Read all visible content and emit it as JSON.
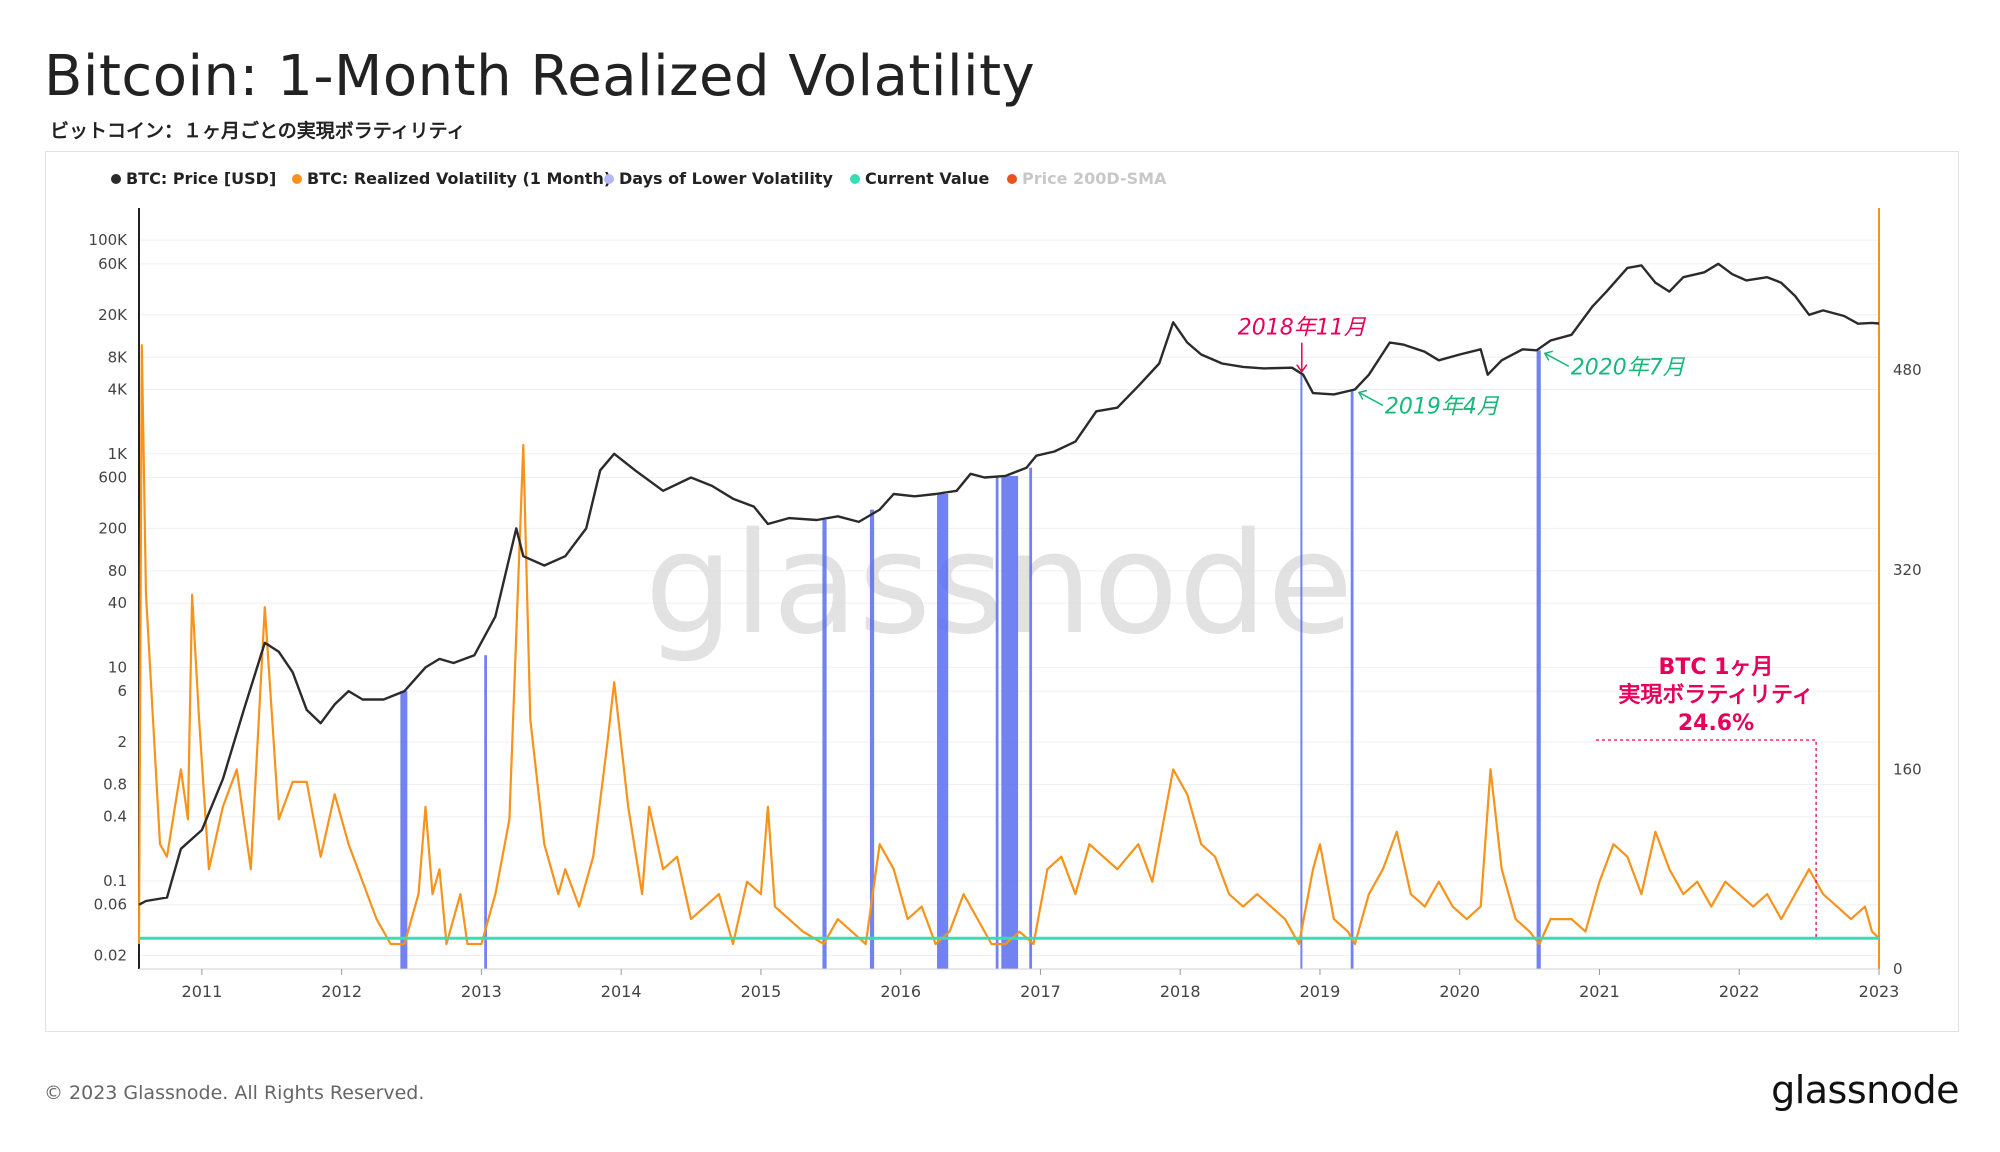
{
  "title": "Bitcoin: 1-Month Realized Volatility",
  "subtitle": "ビットコイン：１ヶ月ごとの実現ボラティリティ",
  "footer": "© 2023 Glassnode. All Rights Reserved.",
  "brand": "glassnode",
  "watermark": "glassnode",
  "colors": {
    "price": "#2b2b2b",
    "volatility": "#f7931a",
    "lower_vol_days": "#5b6cf0",
    "current_value": "#34e0b2",
    "sma": "#e8541c",
    "annotation_red": "#e6005c",
    "annotation_green": "#18b87a"
  },
  "legend": [
    {
      "label": "BTC: Price [USD]",
      "color": "#2b2b2b",
      "active": true
    },
    {
      "label": "BTC: Realized Volatility (1 Month)",
      "color": "#f7931a",
      "active": true
    },
    {
      "label": "Days of Lower Volatility",
      "color": "#b3b8f5",
      "active": true
    },
    {
      "label": "Current Value",
      "color": "#34e0b2",
      "active": true
    },
    {
      "label": "Price 200D-SMA",
      "color": "#e8541c",
      "active": false
    }
  ],
  "chart_data": {
    "type": "line",
    "x_range": [
      2010.55,
      2023.0
    ],
    "x_ticks": [
      "2011",
      "2012",
      "2013",
      "2014",
      "2015",
      "2016",
      "2017",
      "2018",
      "2019",
      "2020",
      "2021",
      "2022",
      "2023"
    ],
    "left_axis": {
      "label": "",
      "scale": "log",
      "range": [
        0.015,
        200000
      ],
      "ticks": [
        {
          "v": 100000,
          "t": "100K"
        },
        {
          "v": 60000,
          "t": "60K"
        },
        {
          "v": 20000,
          "t": "20K"
        },
        {
          "v": 8000,
          "t": "8K"
        },
        {
          "v": 4000,
          "t": "4K"
        },
        {
          "v": 1000,
          "t": "1K"
        },
        {
          "v": 600,
          "t": "600"
        },
        {
          "v": 200,
          "t": "200"
        },
        {
          "v": 80,
          "t": "80"
        },
        {
          "v": 40,
          "t": "40"
        },
        {
          "v": 10,
          "t": "10"
        },
        {
          "v": 6,
          "t": "6"
        },
        {
          "v": 2,
          "t": "2"
        },
        {
          "v": 0.8,
          "t": "0.8"
        },
        {
          "v": 0.4,
          "t": "0.4"
        },
        {
          "v": 0.1,
          "t": "0.1"
        },
        {
          "v": 0.06,
          "t": "0.06"
        },
        {
          "v": 0.02,
          "t": "0.02"
        }
      ]
    },
    "right_axis": {
      "label": "",
      "scale": "linear",
      "range": [
        0,
        610
      ],
      "ticks": [
        0,
        160,
        320,
        480
      ]
    },
    "series": [
      {
        "name": "BTC: Price [USD]",
        "axis": "left",
        "points": [
          [
            2010.55,
            0.06
          ],
          [
            2010.6,
            0.065
          ],
          [
            2010.75,
            0.07
          ],
          [
            2010.85,
            0.2
          ],
          [
            2011.0,
            0.3
          ],
          [
            2011.15,
            0.9
          ],
          [
            2011.3,
            4
          ],
          [
            2011.45,
            17
          ],
          [
            2011.55,
            14
          ],
          [
            2011.65,
            9
          ],
          [
            2011.75,
            4
          ],
          [
            2011.85,
            3
          ],
          [
            2011.95,
            4.5
          ],
          [
            2012.05,
            6
          ],
          [
            2012.15,
            5
          ],
          [
            2012.3,
            5
          ],
          [
            2012.45,
            6
          ],
          [
            2012.6,
            10
          ],
          [
            2012.7,
            12
          ],
          [
            2012.8,
            11
          ],
          [
            2012.95,
            13
          ],
          [
            2013.1,
            30
          ],
          [
            2013.25,
            200
          ],
          [
            2013.3,
            110
          ],
          [
            2013.45,
            90
          ],
          [
            2013.6,
            110
          ],
          [
            2013.75,
            200
          ],
          [
            2013.85,
            700
          ],
          [
            2013.95,
            1000
          ],
          [
            2014.1,
            700
          ],
          [
            2014.3,
            450
          ],
          [
            2014.5,
            600
          ],
          [
            2014.65,
            500
          ],
          [
            2014.8,
            380
          ],
          [
            2014.95,
            320
          ],
          [
            2015.05,
            220
          ],
          [
            2015.2,
            250
          ],
          [
            2015.4,
            240
          ],
          [
            2015.55,
            260
          ],
          [
            2015.7,
            230
          ],
          [
            2015.85,
            300
          ],
          [
            2015.95,
            420
          ],
          [
            2016.1,
            400
          ],
          [
            2016.25,
            420
          ],
          [
            2016.4,
            450
          ],
          [
            2016.5,
            650
          ],
          [
            2016.6,
            600
          ],
          [
            2016.75,
            620
          ],
          [
            2016.9,
            740
          ],
          [
            2016.97,
            960
          ],
          [
            2017.1,
            1050
          ],
          [
            2017.25,
            1300
          ],
          [
            2017.4,
            2500
          ],
          [
            2017.55,
            2700
          ],
          [
            2017.7,
            4300
          ],
          [
            2017.85,
            7000
          ],
          [
            2017.95,
            17000
          ],
          [
            2018.05,
            11000
          ],
          [
            2018.15,
            8500
          ],
          [
            2018.3,
            7000
          ],
          [
            2018.45,
            6500
          ],
          [
            2018.6,
            6300
          ],
          [
            2018.8,
            6400
          ],
          [
            2018.88,
            5500
          ],
          [
            2018.95,
            3700
          ],
          [
            2019.1,
            3600
          ],
          [
            2019.25,
            4000
          ],
          [
            2019.35,
            5500
          ],
          [
            2019.5,
            11000
          ],
          [
            2019.6,
            10500
          ],
          [
            2019.75,
            9000
          ],
          [
            2019.85,
            7500
          ],
          [
            2020.0,
            8500
          ],
          [
            2020.15,
            9500
          ],
          [
            2020.2,
            5500
          ],
          [
            2020.3,
            7500
          ],
          [
            2020.45,
            9500
          ],
          [
            2020.55,
            9300
          ],
          [
            2020.65,
            11500
          ],
          [
            2020.8,
            13000
          ],
          [
            2020.95,
            24000
          ],
          [
            2021.05,
            33000
          ],
          [
            2021.2,
            55000
          ],
          [
            2021.3,
            58000
          ],
          [
            2021.4,
            40000
          ],
          [
            2021.5,
            33000
          ],
          [
            2021.6,
            45000
          ],
          [
            2021.75,
            50000
          ],
          [
            2021.85,
            60000
          ],
          [
            2021.95,
            48000
          ],
          [
            2022.05,
            42000
          ],
          [
            2022.2,
            45000
          ],
          [
            2022.3,
            40000
          ],
          [
            2022.4,
            30000
          ],
          [
            2022.5,
            20000
          ],
          [
            2022.6,
            22000
          ],
          [
            2022.75,
            19500
          ],
          [
            2022.85,
            16500
          ],
          [
            2022.95,
            16800
          ],
          [
            2023.0,
            16600
          ]
        ]
      },
      {
        "name": "BTC: Realized Volatility (1 Month)",
        "axis": "right",
        "points": [
          [
            2010.55,
            20
          ],
          [
            2010.57,
            500
          ],
          [
            2010.6,
            300
          ],
          [
            2010.65,
            200
          ],
          [
            2010.7,
            100
          ],
          [
            2010.75,
            90
          ],
          [
            2010.85,
            160
          ],
          [
            2010.9,
            120
          ],
          [
            2010.93,
            300
          ],
          [
            2010.98,
            200
          ],
          [
            2011.05,
            80
          ],
          [
            2011.15,
            130
          ],
          [
            2011.25,
            160
          ],
          [
            2011.35,
            80
          ],
          [
            2011.45,
            290
          ],
          [
            2011.55,
            120
          ],
          [
            2011.65,
            150
          ],
          [
            2011.75,
            150
          ],
          [
            2011.85,
            90
          ],
          [
            2011.95,
            140
          ],
          [
            2012.05,
            100
          ],
          [
            2012.15,
            70
          ],
          [
            2012.25,
            40
          ],
          [
            2012.35,
            20
          ],
          [
            2012.45,
            20
          ],
          [
            2012.55,
            60
          ],
          [
            2012.6,
            130
          ],
          [
            2012.65,
            60
          ],
          [
            2012.7,
            80
          ],
          [
            2012.75,
            20
          ],
          [
            2012.85,
            60
          ],
          [
            2012.9,
            20
          ],
          [
            2013.0,
            20
          ],
          [
            2013.1,
            60
          ],
          [
            2013.2,
            120
          ],
          [
            2013.3,
            420
          ],
          [
            2013.35,
            200
          ],
          [
            2013.45,
            100
          ],
          [
            2013.55,
            60
          ],
          [
            2013.6,
            80
          ],
          [
            2013.7,
            50
          ],
          [
            2013.8,
            90
          ],
          [
            2013.9,
            180
          ],
          [
            2013.95,
            230
          ],
          [
            2014.05,
            130
          ],
          [
            2014.15,
            60
          ],
          [
            2014.2,
            130
          ],
          [
            2014.3,
            80
          ],
          [
            2014.4,
            90
          ],
          [
            2014.5,
            40
          ],
          [
            2014.6,
            50
          ],
          [
            2014.7,
            60
          ],
          [
            2014.8,
            20
          ],
          [
            2014.9,
            70
          ],
          [
            2015.0,
            60
          ],
          [
            2015.05,
            130
          ],
          [
            2015.1,
            50
          ],
          [
            2015.2,
            40
          ],
          [
            2015.3,
            30
          ],
          [
            2015.45,
            20
          ],
          [
            2015.55,
            40
          ],
          [
            2015.65,
            30
          ],
          [
            2015.75,
            20
          ],
          [
            2015.85,
            100
          ],
          [
            2015.95,
            80
          ],
          [
            2016.05,
            40
          ],
          [
            2016.15,
            50
          ],
          [
            2016.25,
            20
          ],
          [
            2016.35,
            30
          ],
          [
            2016.45,
            60
          ],
          [
            2016.55,
            40
          ],
          [
            2016.65,
            20
          ],
          [
            2016.75,
            20
          ],
          [
            2016.85,
            30
          ],
          [
            2016.95,
            20
          ],
          [
            2017.05,
            80
          ],
          [
            2017.15,
            90
          ],
          [
            2017.25,
            60
          ],
          [
            2017.35,
            100
          ],
          [
            2017.45,
            90
          ],
          [
            2017.55,
            80
          ],
          [
            2017.7,
            100
          ],
          [
            2017.8,
            70
          ],
          [
            2017.9,
            130
          ],
          [
            2017.95,
            160
          ],
          [
            2018.05,
            140
          ],
          [
            2018.15,
            100
          ],
          [
            2018.25,
            90
          ],
          [
            2018.35,
            60
          ],
          [
            2018.45,
            50
          ],
          [
            2018.55,
            60
          ],
          [
            2018.65,
            50
          ],
          [
            2018.75,
            40
          ],
          [
            2018.85,
            20
          ],
          [
            2018.95,
            80
          ],
          [
            2019.0,
            100
          ],
          [
            2019.1,
            40
          ],
          [
            2019.2,
            30
          ],
          [
            2019.25,
            20
          ],
          [
            2019.35,
            60
          ],
          [
            2019.45,
            80
          ],
          [
            2019.55,
            110
          ],
          [
            2019.65,
            60
          ],
          [
            2019.75,
            50
          ],
          [
            2019.85,
            70
          ],
          [
            2019.95,
            50
          ],
          [
            2020.05,
            40
          ],
          [
            2020.15,
            50
          ],
          [
            2020.22,
            160
          ],
          [
            2020.3,
            80
          ],
          [
            2020.4,
            40
          ],
          [
            2020.5,
            30
          ],
          [
            2020.57,
            20
          ],
          [
            2020.65,
            40
          ],
          [
            2020.8,
            40
          ],
          [
            2020.9,
            30
          ],
          [
            2021.0,
            70
          ],
          [
            2021.1,
            100
          ],
          [
            2021.2,
            90
          ],
          [
            2021.3,
            60
          ],
          [
            2021.4,
            110
          ],
          [
            2021.5,
            80
          ],
          [
            2021.6,
            60
          ],
          [
            2021.7,
            70
          ],
          [
            2021.8,
            50
          ],
          [
            2021.9,
            70
          ],
          [
            2022.0,
            60
          ],
          [
            2022.1,
            50
          ],
          [
            2022.2,
            60
          ],
          [
            2022.3,
            40
          ],
          [
            2022.4,
            60
          ],
          [
            2022.5,
            80
          ],
          [
            2022.6,
            60
          ],
          [
            2022.7,
            50
          ],
          [
            2022.8,
            40
          ],
          [
            2022.9,
            50
          ],
          [
            2022.95,
            30
          ],
          [
            2023.0,
            24.6
          ]
        ]
      },
      {
        "name": "Current Value",
        "axis": "right",
        "points": [
          [
            2010.55,
            24.6
          ],
          [
            2023.0,
            24.6
          ]
        ]
      }
    ],
    "lower_volatility_bands": [
      [
        2012.42,
        2012.47
      ],
      [
        2013.02,
        2013.04
      ],
      [
        2015.44,
        2015.47
      ],
      [
        2015.78,
        2015.81
      ],
      [
        2016.26,
        2016.34
      ],
      [
        2016.68,
        2016.7
      ],
      [
        2016.72,
        2016.84
      ],
      [
        2016.92,
        2016.94
      ],
      [
        2018.86,
        2018.87
      ],
      [
        2019.22,
        2019.24
      ],
      [
        2020.55,
        2020.58
      ]
    ],
    "annotations": [
      {
        "text": "2018年11月",
        "x": 2018.87,
        "color": "#e6005c",
        "kind": "down-arrow"
      },
      {
        "text": "2019年4月",
        "x": 2019.25,
        "color": "#18b87a",
        "kind": "left-arrow"
      },
      {
        "text": "2020年7月",
        "x": 2020.58,
        "color": "#18b87a",
        "kind": "left-arrow"
      }
    ],
    "callout": {
      "lines": [
        "BTC 1ヶ月",
        "実現ボラティリティ",
        "24.6%"
      ],
      "color": "#e6005c"
    }
  }
}
